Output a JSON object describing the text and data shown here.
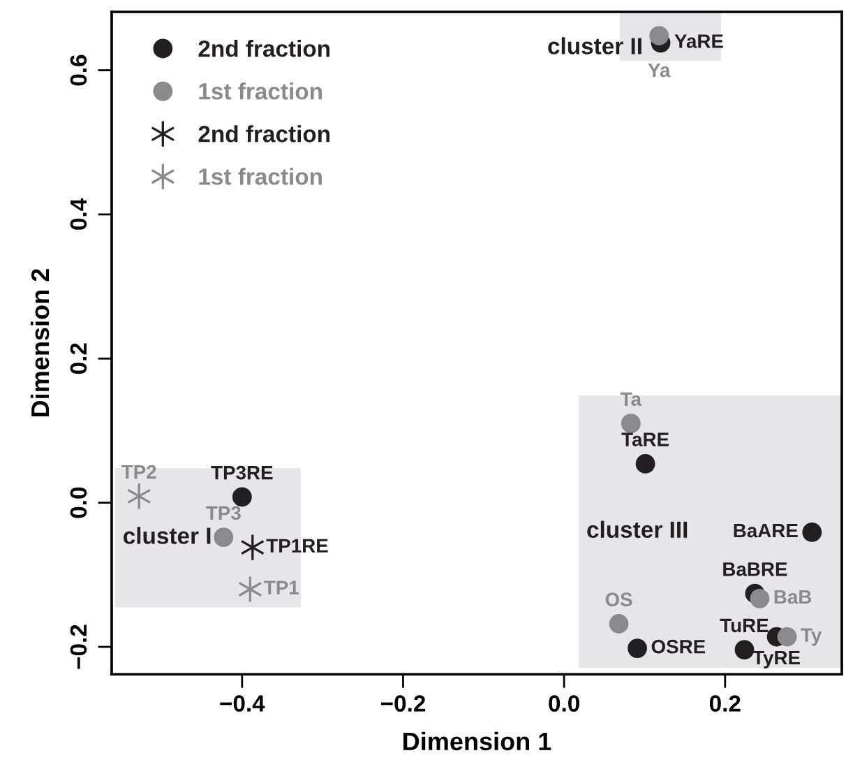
{
  "chart_data": {
    "type": "scatter",
    "xlabel": "Dimension 1",
    "ylabel": "Dimension 2",
    "xlim": [
      -0.562,
      0.345
    ],
    "ylim": [
      -0.238,
      0.681
    ],
    "xticks": [
      {
        "value": -0.4,
        "label": "−0.4"
      },
      {
        "value": -0.2,
        "label": "−0.2"
      },
      {
        "value": 0.0,
        "label": "0.0"
      },
      {
        "value": 0.2,
        "label": "0.2"
      }
    ],
    "yticks": [
      {
        "value": -0.2,
        "label": "−0.2"
      },
      {
        "value": 0.0,
        "label": "0.0"
      },
      {
        "value": 0.2,
        "label": "0.2"
      },
      {
        "value": 0.4,
        "label": "0.4"
      },
      {
        "value": 0.6,
        "label": "0.6"
      }
    ],
    "grid": false,
    "legend": "top left",
    "bands": [
      {
        "axis": "x",
        "from": -0.558,
        "to": -0.327,
        "color": "#e6e6e8",
        "label": "cluster I"
      },
      {
        "axis": "x",
        "from": 0.069,
        "to": 0.195,
        "color": "#e6e6e8",
        "label": "cluster II"
      },
      {
        "axis": "x",
        "from": 0.018,
        "to": 0.345,
        "color": "#e6e6e8",
        "label": "cluster III"
      }
    ],
    "annotations": [
      {
        "text": "YaRE",
        "x": 0.12,
        "y": 0.638
      },
      {
        "text": "TP3RE",
        "x": -0.4,
        "y": 0.008
      },
      {
        "text": "TaRE",
        "x": 0.101,
        "y": 0.054
      },
      {
        "text": "BaARE",
        "x": 0.308,
        "y": -0.041
      },
      {
        "text": "BaBRE",
        "x": 0.237,
        "y": -0.126
      },
      {
        "text": "TyRE",
        "x": 0.264,
        "y": -0.186
      },
      {
        "text": "TuRE",
        "x": 0.224,
        "y": -0.204
      },
      {
        "text": "OSRE",
        "x": 0.091,
        "y": -0.202
      },
      {
        "text": "Ya",
        "x": 0.118,
        "y": 0.648
      },
      {
        "text": "Ta",
        "x": 0.083,
        "y": 0.11
      },
      {
        "text": "TP3",
        "x": -0.423,
        "y": -0.048
      },
      {
        "text": "BaB",
        "x": 0.243,
        "y": -0.133
      },
      {
        "text": "Ty",
        "x": 0.277,
        "y": -0.186
      },
      {
        "text": "OS",
        "x": 0.068,
        "y": -0.168
      },
      {
        "text": "TP1RE",
        "x": -0.387,
        "y": -0.062
      },
      {
        "text": "TP2",
        "x": -0.528,
        "y": 0.009
      },
      {
        "text": "TP1",
        "x": -0.39,
        "y": -0.12
      }
    ],
    "series": [
      {
        "name": "2nd fraction",
        "color": "#231f20",
        "marker": "circle",
        "x": [
          0.12,
          -0.4,
          0.101,
          0.308,
          0.237,
          0.264,
          0.224,
          0.091
        ],
        "values": [
          0.638,
          0.008,
          0.054,
          -0.041,
          -0.126,
          -0.186,
          -0.204,
          -0.202
        ]
      },
      {
        "name": "1st fraction",
        "color": "#8a8a8c",
        "marker": "circle",
        "x": [
          0.118,
          0.083,
          -0.423,
          0.243,
          0.277,
          0.068
        ],
        "values": [
          0.648,
          0.11,
          -0.048,
          -0.133,
          -0.186,
          -0.168
        ]
      },
      {
        "name": "2nd fraction",
        "color": "#231f20",
        "marker": "cross",
        "x": [
          -0.387
        ],
        "values": [
          -0.062
        ]
      },
      {
        "name": "1st fraction",
        "color": "#8a8a8c",
        "marker": "cross",
        "x": [
          -0.528,
          -0.39
        ],
        "values": [
          0.009,
          -0.12
        ]
      }
    ]
  }
}
